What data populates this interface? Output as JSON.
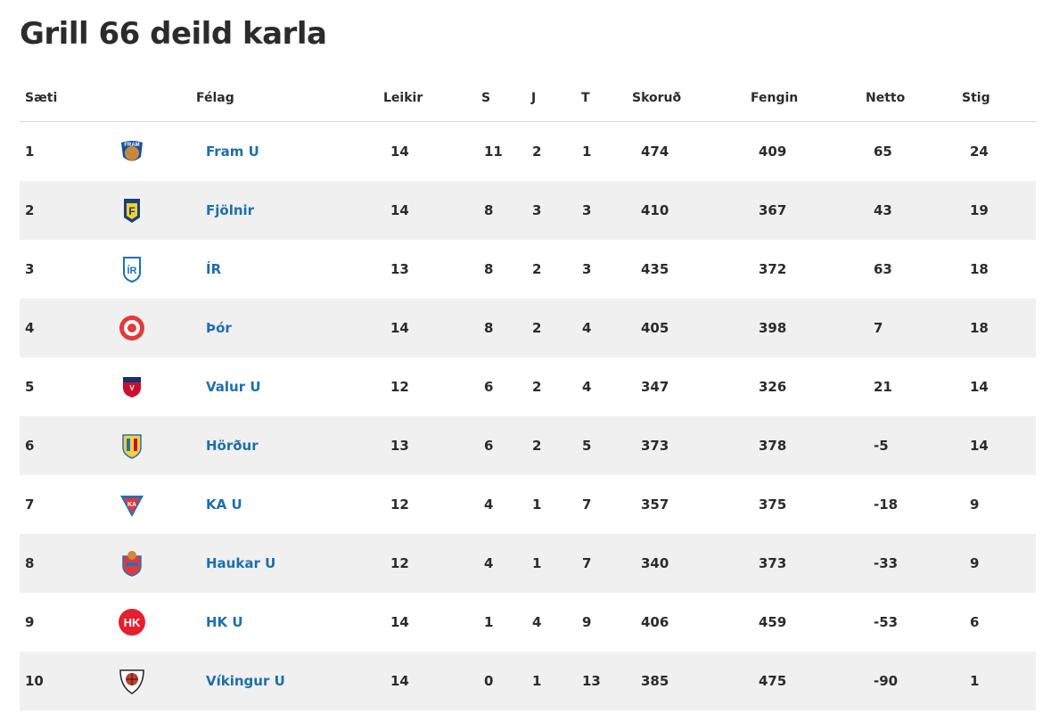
{
  "page": {
    "title": "Grill 66 deild karla"
  },
  "columns": {
    "position": "Sæti",
    "team": "Félag",
    "played": "Leikir",
    "wins": "S",
    "draws": "J",
    "losses": "T",
    "scored": "Skoruð",
    "conceded": "Fengin",
    "net": "Netto",
    "points": "Stig"
  },
  "rows": [
    {
      "pos": "1",
      "team": "Fram U",
      "logo": "fram-logo-icon",
      "played": "14",
      "w": "11",
      "d": "2",
      "l": "1",
      "scored": "474",
      "conceded": "409",
      "net": "65",
      "pts": "24"
    },
    {
      "pos": "2",
      "team": "Fjölnir",
      "logo": "fjolnir-logo-icon",
      "played": "14",
      "w": "8",
      "d": "3",
      "l": "3",
      "scored": "410",
      "conceded": "367",
      "net": "43",
      "pts": "19"
    },
    {
      "pos": "3",
      "team": "ÍR",
      "logo": "ir-logo-icon",
      "played": "13",
      "w": "8",
      "d": "2",
      "l": "3",
      "scored": "435",
      "conceded": "372",
      "net": "63",
      "pts": "18"
    },
    {
      "pos": "4",
      "team": "Þór",
      "logo": "thor-logo-icon",
      "played": "14",
      "w": "8",
      "d": "2",
      "l": "4",
      "scored": "405",
      "conceded": "398",
      "net": "7",
      "pts": "18"
    },
    {
      "pos": "5",
      "team": "Valur U",
      "logo": "valur-logo-icon",
      "played": "12",
      "w": "6",
      "d": "2",
      "l": "4",
      "scored": "347",
      "conceded": "326",
      "net": "21",
      "pts": "14"
    },
    {
      "pos": "6",
      "team": "Hörður",
      "logo": "hordur-logo-icon",
      "played": "13",
      "w": "6",
      "d": "2",
      "l": "5",
      "scored": "373",
      "conceded": "378",
      "net": "-5",
      "pts": "14"
    },
    {
      "pos": "7",
      "team": "KA U",
      "logo": "ka-logo-icon",
      "played": "12",
      "w": "4",
      "d": "1",
      "l": "7",
      "scored": "357",
      "conceded": "375",
      "net": "-18",
      "pts": "9"
    },
    {
      "pos": "8",
      "team": "Haukar U",
      "logo": "haukar-logo-icon",
      "played": "12",
      "w": "4",
      "d": "1",
      "l": "7",
      "scored": "340",
      "conceded": "373",
      "net": "-33",
      "pts": "9"
    },
    {
      "pos": "9",
      "team": "HK U",
      "logo": "hk-logo-icon",
      "played": "14",
      "w": "1",
      "d": "4",
      "l": "9",
      "scored": "406",
      "conceded": "459",
      "net": "-53",
      "pts": "6"
    },
    {
      "pos": "10",
      "team": "Víkingur U",
      "logo": "vikingur-logo-icon",
      "played": "14",
      "w": "0",
      "d": "1",
      "l": "13",
      "scored": "385",
      "conceded": "475",
      "net": "-90",
      "pts": "1"
    }
  ],
  "colors": {
    "link": "#1f6fa8",
    "stripe": "#f0f0f0",
    "text": "#2b2b2b",
    "divider": "#d8d8d8"
  }
}
